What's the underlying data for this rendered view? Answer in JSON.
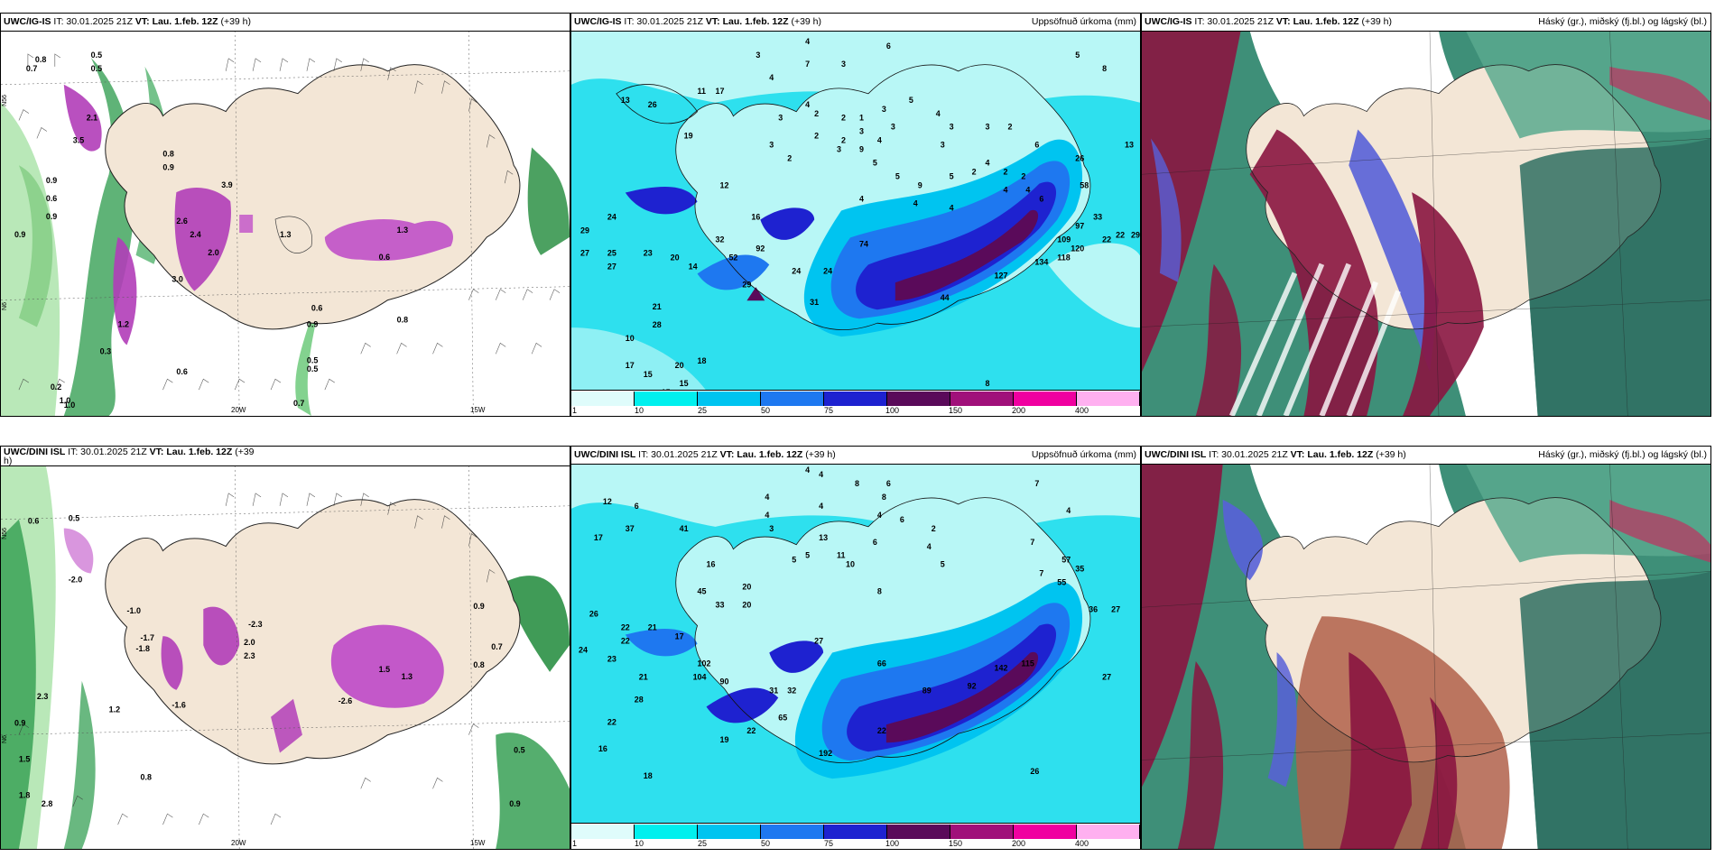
{
  "panels": {
    "p1": {
      "model": "UWC/IG-IS",
      "it": "IT: 30.01.2025 21Z",
      "vt_label": "VT:",
      "vt": "Lau. 1.feb. 12Z",
      "lead": "(+39 h)",
      "product": "",
      "lat1": "N56",
      "lat2": "N6",
      "lon1": "20W",
      "lon2": "15W",
      "labels": [
        "0.8",
        "0.5",
        "0.7",
        "0.5",
        "0.9",
        "0.6",
        "0.9",
        "0.8",
        "0.9",
        "2.6",
        "3.9",
        "2.0",
        "1.3",
        "0.6",
        "0.9",
        "0.5",
        "0.5",
        "0.7",
        "0.6",
        "3.0",
        "2.1",
        "3.5",
        "1.2",
        "0.3",
        "0.2",
        "1.0",
        "0.9",
        "0.8",
        "0.6",
        "2.4",
        "1.3",
        "1.0"
      ]
    },
    "p2": {
      "model": "UWC/IG-IS",
      "it": "IT: 30.01.2025 21Z",
      "vt_label": "VT:",
      "vt": "Lau. 1.feb. 12Z",
      "lead": "(+39 h)",
      "product": "Uppsöfnuð úrkoma (mm)",
      "labels": [
        "4",
        "3",
        "7",
        "3",
        "4",
        "6",
        "5",
        "8",
        "13",
        "26",
        "11",
        "17",
        "3",
        "4",
        "2",
        "2",
        "1",
        "3",
        "5",
        "4",
        "3",
        "3",
        "2",
        "2",
        "2",
        "3",
        "4",
        "3",
        "6",
        "19",
        "3",
        "2",
        "4",
        "2",
        "2",
        "9",
        "5",
        "3",
        "5",
        "2",
        "4",
        "13",
        "12",
        "3",
        "9",
        "5",
        "4",
        "4",
        "26",
        "16",
        "4",
        "4",
        "6",
        "58",
        "24",
        "29",
        "27",
        "22",
        "109",
        "33",
        "23",
        "20",
        "14",
        "32",
        "52",
        "92",
        "29",
        "24",
        "74",
        "24",
        "25",
        "27",
        "28",
        "10",
        "21",
        "17",
        "20",
        "18",
        "15",
        "15",
        "15",
        "118",
        "134",
        "127",
        "44",
        "31",
        "22",
        "29",
        "97",
        "120",
        "8"
      ]
    },
    "p3": {
      "model": "UWC/IG-IS",
      "it": "IT: 30.01.2025 21Z",
      "vt_label": "VT:",
      "vt": "Lau. 1.feb. 12Z",
      "lead": "(+39 h)",
      "product": "Háský (gr.), miðský (fj.bl.) og lágský (bl.)"
    },
    "p4": {
      "model": "UWC/DINI ISL",
      "it": "IT: 30.01.2025 21Z",
      "vt_label": "VT:",
      "vt": "Lau. 1.feb. 12Z",
      "lead": "(+39",
      "lead2": "h)",
      "product": "",
      "lat1": "N56",
      "lat2": "N6",
      "lon1": "20W",
      "lon2": "15W",
      "labels": [
        "0.6",
        "0.5",
        "-2.0",
        "-1.0",
        "-1.7",
        "-1.8",
        "-2.3",
        "2.0",
        "2.3",
        "-1.6",
        "0.9",
        "0.8",
        "0.7",
        "0.5",
        "0.9",
        "-2.6",
        "1.5",
        "1.3",
        "0.8",
        "0.9",
        "1.2",
        "1.5",
        "2.3",
        "2.8",
        "1.8"
      ]
    },
    "p5": {
      "model": "UWC/DINI ISL",
      "it": "IT: 30.01.2025 21Z",
      "vt_label": "VT:",
      "vt": "Lau. 1.feb. 12Z",
      "lead": "(+39 h)",
      "product": "Uppsöfnuð úrkoma (mm)",
      "labels": [
        "4",
        "4",
        "8",
        "6",
        "12",
        "6",
        "4",
        "4",
        "4",
        "3",
        "8",
        "4",
        "6",
        "7",
        "4",
        "2",
        "4",
        "13",
        "11",
        "10",
        "5",
        "5",
        "6",
        "7",
        "8",
        "5",
        "7",
        "20",
        "17",
        "26",
        "22",
        "22",
        "21",
        "17",
        "37",
        "41",
        "16",
        "45",
        "33",
        "20",
        "55",
        "57",
        "35",
        "36",
        "27",
        "27",
        "24",
        "23",
        "21",
        "28",
        "27",
        "102",
        "90",
        "31",
        "32",
        "16",
        "18",
        "19",
        "22",
        "22",
        "22",
        "26",
        "104",
        "192",
        "65",
        "66",
        "89",
        "92",
        "142",
        "115"
      ]
    },
    "p6": {
      "model": "UWC/DINI ISL",
      "it": "IT: 30.01.2025 21Z",
      "vt_label": "VT:",
      "vt": "Lau. 1.feb. 12Z",
      "lead": "(+39 h)",
      "product": "Háský (gr.), miðský (fj.bl.) og lágský (bl.)"
    }
  },
  "colorbar": {
    "ticks": [
      "1",
      "10",
      "25",
      "50",
      "75",
      "100",
      "150",
      "200",
      "400"
    ],
    "colors": [
      "#dffcfb",
      "#00f0ee",
      "#00c4f0",
      "#1e78f0",
      "#1e22d0",
      "#5a0a5a",
      "#a0107a",
      "#f000a0",
      "#ffb0f0"
    ]
  },
  "colors": {
    "land": "#f3e6d6",
    "sea_precip": "#2ee0ee",
    "sea_light": "#b8f7f6",
    "cloud_high": "#8a1540",
    "cloud_mid": "#5860d8",
    "cloud_low": "#3e8f78",
    "wind_green": "#2a9a4a",
    "pink": "#c050c8"
  }
}
